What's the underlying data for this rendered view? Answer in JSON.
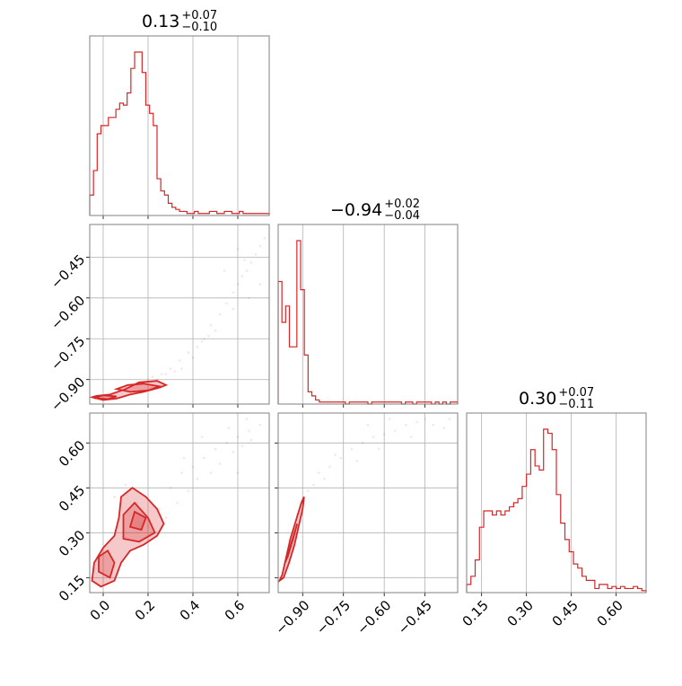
{
  "chart_data": {
    "type": "corner",
    "color": "#d62728",
    "titles": [
      {
        "value": "0.13",
        "plus": "+0.07",
        "minus": "−0.10"
      },
      {
        "value": "−0.94",
        "plus": "+0.02",
        "minus": "−0.04"
      },
      {
        "value": "0.30",
        "plus": "+0.07",
        "minus": "−0.11"
      }
    ],
    "parameters": [
      {
        "range": [
          -0.06,
          0.74
        ],
        "ticks": [
          0.0,
          0.2,
          0.4,
          0.6
        ],
        "tick_labels": [
          "0.0",
          "0.2",
          "0.4",
          "0.6"
        ]
      },
      {
        "range": [
          -0.99,
          -0.33
        ],
        "ticks": [
          -0.9,
          -0.75,
          -0.6,
          -0.45
        ],
        "tick_labels": [
          "−0.90",
          "−0.75",
          "−0.60",
          "−0.45"
        ]
      },
      {
        "range": [
          0.1,
          0.7
        ],
        "ticks": [
          0.15,
          0.3,
          0.45,
          0.6
        ],
        "tick_labels": [
          "0.15",
          "0.30",
          "0.45",
          "0.60"
        ]
      }
    ],
    "grid": true,
    "histograms": [
      {
        "param": 0,
        "bin_edges_range": [
          -0.06,
          0.74
        ],
        "counts": [
          10,
          22,
          40,
          44,
          44,
          48,
          48,
          52,
          55,
          54,
          60,
          72,
          80,
          80,
          70,
          54,
          50,
          44,
          18,
          12,
          10,
          6,
          4,
          3,
          2,
          2,
          1,
          1,
          2,
          1,
          1,
          1,
          2,
          2,
          1,
          1,
          2,
          2,
          1,
          1,
          2,
          1,
          1,
          1,
          1,
          1,
          1,
          1
        ]
      },
      {
        "param": 1,
        "bin_edges_range": [
          -0.99,
          -0.33
        ],
        "counts": [
          60,
          40,
          48,
          28,
          28,
          80,
          56,
          24,
          6,
          4,
          2,
          1,
          1,
          1,
          1,
          1,
          1,
          1,
          0,
          1,
          1,
          1,
          1,
          1,
          0,
          1,
          1,
          1,
          1,
          1,
          1,
          1,
          1,
          0,
          1,
          1,
          0,
          1,
          1,
          1,
          1,
          0,
          1,
          0,
          1,
          0,
          1,
          1
        ]
      },
      {
        "param": 2,
        "bin_edges_range": [
          0.1,
          0.7
        ],
        "counts": [
          4,
          8,
          16,
          32,
          40,
          40,
          38,
          40,
          38,
          40,
          42,
          44,
          46,
          52,
          58,
          70,
          62,
          60,
          80,
          78,
          70,
          48,
          34,
          26,
          20,
          14,
          12,
          8,
          6,
          6,
          2,
          4,
          4,
          2,
          3,
          2,
          3,
          2,
          2,
          3,
          2,
          1
        ]
      }
    ],
    "pairs": [
      {
        "x_param": 0,
        "y_param": 1,
        "points": [
          [
            0.15,
            -0.92
          ],
          [
            0.18,
            -0.91
          ],
          [
            0.22,
            -0.89
          ],
          [
            0.26,
            -0.88
          ],
          [
            0.3,
            -0.86
          ],
          [
            0.34,
            -0.83
          ],
          [
            0.38,
            -0.8
          ],
          [
            0.42,
            -0.78
          ],
          [
            0.45,
            -0.75
          ],
          [
            0.48,
            -0.7
          ],
          [
            0.52,
            -0.66
          ],
          [
            0.55,
            -0.62
          ],
          [
            0.58,
            -0.58
          ],
          [
            0.6,
            -0.55
          ],
          [
            0.62,
            -0.52
          ],
          [
            0.64,
            -0.5
          ],
          [
            0.66,
            -0.47
          ],
          [
            0.68,
            -0.44
          ],
          [
            0.7,
            -0.41
          ],
          [
            0.72,
            -0.38
          ],
          [
            0.5,
            -0.72
          ],
          [
            0.4,
            -0.82
          ],
          [
            0.35,
            -0.86
          ],
          [
            0.28,
            -0.88
          ],
          [
            0.65,
            -0.6
          ],
          [
            0.58,
            -0.64
          ],
          [
            0.44,
            -0.76
          ],
          [
            0.6,
            -0.42
          ],
          [
            0.54,
            -0.5
          ],
          [
            0.7,
            -0.55
          ],
          [
            0.1,
            -0.93
          ],
          [
            0.2,
            -0.9
          ],
          [
            0.24,
            -0.9
          ],
          [
            0.32,
            -0.87
          ],
          [
            0.47,
            -0.74
          ],
          [
            0.63,
            -0.46
          ]
        ],
        "contours": [
          [
            [
              -0.05,
              -0.965
            ],
            [
              0.0,
              -0.975
            ],
            [
              0.06,
              -0.97
            ],
            [
              0.12,
              -0.955
            ],
            [
              0.18,
              -0.945
            ],
            [
              0.25,
              -0.93
            ],
            [
              0.28,
              -0.92
            ],
            [
              0.24,
              -0.905
            ],
            [
              0.16,
              -0.91
            ],
            [
              0.1,
              -0.935
            ],
            [
              0.03,
              -0.955
            ],
            [
              -0.03,
              -0.96
            ]
          ],
          [
            [
              0.06,
              -0.935
            ],
            [
              0.12,
              -0.945
            ],
            [
              0.2,
              -0.94
            ],
            [
              0.25,
              -0.925
            ],
            [
              0.18,
              -0.915
            ],
            [
              0.11,
              -0.92
            ]
          ],
          [
            [
              -0.04,
              -0.968
            ],
            [
              0.02,
              -0.972
            ],
            [
              0.06,
              -0.962
            ],
            [
              0.0,
              -0.958
            ]
          ]
        ]
      },
      {
        "x_param": 0,
        "y_param": 2,
        "points": [
          [
            0.25,
            0.38
          ],
          [
            0.3,
            0.45
          ],
          [
            0.35,
            0.5
          ],
          [
            0.4,
            0.52
          ],
          [
            0.45,
            0.55
          ],
          [
            0.5,
            0.58
          ],
          [
            0.55,
            0.6
          ],
          [
            0.6,
            0.62
          ],
          [
            0.65,
            0.64
          ],
          [
            0.7,
            0.66
          ],
          [
            0.48,
            0.5
          ],
          [
            0.52,
            0.53
          ],
          [
            0.58,
            0.57
          ],
          [
            0.62,
            0.59
          ],
          [
            0.66,
            0.61
          ],
          [
            0.42,
            0.48
          ],
          [
            0.38,
            0.44
          ],
          [
            0.33,
            0.4
          ],
          [
            0.28,
            0.35
          ],
          [
            0.56,
            0.65
          ],
          [
            0.64,
            0.68
          ],
          [
            0.44,
            0.62
          ],
          [
            0.36,
            0.55
          ],
          [
            0.6,
            0.5
          ],
          [
            0.2,
            0.32
          ],
          [
            0.15,
            0.4
          ],
          [
            0.05,
            0.42
          ],
          [
            0.1,
            0.46
          ]
        ],
        "contours": [
          [
            [
              -0.05,
              0.14
            ],
            [
              -0.01,
              0.12
            ],
            [
              0.05,
              0.14
            ],
            [
              0.08,
              0.2
            ],
            [
              0.12,
              0.24
            ],
            [
              0.18,
              0.26
            ],
            [
              0.24,
              0.29
            ],
            [
              0.27,
              0.33
            ],
            [
              0.24,
              0.38
            ],
            [
              0.19,
              0.42
            ],
            [
              0.13,
              0.45
            ],
            [
              0.08,
              0.42
            ],
            [
              0.07,
              0.35
            ],
            [
              0.05,
              0.29
            ],
            [
              0.0,
              0.25
            ],
            [
              -0.04,
              0.2
            ]
          ],
          [
            [
              -0.02,
              0.17
            ],
            [
              0.03,
              0.15
            ],
            [
              0.05,
              0.2
            ],
            [
              0.02,
              0.24
            ],
            [
              -0.02,
              0.22
            ]
          ],
          [
            [
              0.09,
              0.28
            ],
            [
              0.16,
              0.27
            ],
            [
              0.23,
              0.3
            ],
            [
              0.2,
              0.35
            ],
            [
              0.14,
              0.4
            ],
            [
              0.09,
              0.36
            ]
          ],
          [
            [
              0.12,
              0.32
            ],
            [
              0.17,
              0.31
            ],
            [
              0.19,
              0.35
            ],
            [
              0.14,
              0.37
            ]
          ]
        ]
      },
      {
        "x_param": 1,
        "y_param": 2,
        "points": [
          [
            -0.92,
            0.36
          ],
          [
            -0.9,
            0.4
          ],
          [
            -0.88,
            0.44
          ],
          [
            -0.86,
            0.46
          ],
          [
            -0.84,
            0.5
          ],
          [
            -0.8,
            0.52
          ],
          [
            -0.76,
            0.55
          ],
          [
            -0.72,
            0.58
          ],
          [
            -0.68,
            0.6
          ],
          [
            -0.64,
            0.62
          ],
          [
            -0.6,
            0.63
          ],
          [
            -0.56,
            0.64
          ],
          [
            -0.52,
            0.66
          ],
          [
            -0.48,
            0.67
          ],
          [
            -0.45,
            0.68
          ],
          [
            -0.42,
            0.66
          ],
          [
            -0.38,
            0.65
          ],
          [
            -0.36,
            0.68
          ],
          [
            -0.7,
            0.54
          ],
          [
            -0.62,
            0.58
          ],
          [
            -0.58,
            0.68
          ],
          [
            -0.5,
            0.62
          ],
          [
            -0.82,
            0.48
          ],
          [
            -0.78,
            0.56
          ],
          [
            -0.66,
            0.66
          ]
        ],
        "contours": [
          [
            [
              -0.985,
              0.14
            ],
            [
              -0.975,
              0.16
            ],
            [
              -0.96,
              0.22
            ],
            [
              -0.945,
              0.28
            ],
            [
              -0.925,
              0.34
            ],
            [
              -0.905,
              0.4
            ],
            [
              -0.895,
              0.42
            ],
            [
              -0.9,
              0.38
            ],
            [
              -0.915,
              0.32
            ],
            [
              -0.93,
              0.26
            ],
            [
              -0.95,
              0.2
            ],
            [
              -0.97,
              0.15
            ]
          ],
          [
            [
              -0.965,
              0.2
            ],
            [
              -0.955,
              0.22
            ],
            [
              -0.935,
              0.28
            ],
            [
              -0.92,
              0.33
            ],
            [
              -0.93,
              0.3
            ],
            [
              -0.95,
              0.24
            ]
          ]
        ]
      }
    ]
  }
}
